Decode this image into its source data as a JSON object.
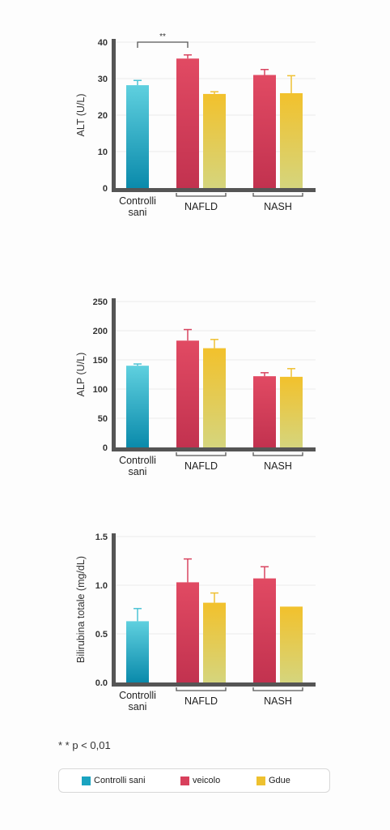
{
  "colors": {
    "controls": [
      "#5fd0df",
      "#0a8aab"
    ],
    "veicolo": [
      "#e14a63",
      "#c2324f"
    ],
    "gdue": [
      "#f2c12c",
      "#d5d57d"
    ],
    "axis": "#555555",
    "error_controls": "#4cc3d5",
    "error_veicolo": "#d94560",
    "error_gdue": "#efc033"
  },
  "group_labels": {
    "controls": [
      "Controlli",
      "sani"
    ],
    "nafld": "NAFLD",
    "nash": "NASH"
  },
  "chart_data": [
    {
      "type": "bar",
      "ylabel": "ALT (U/L)",
      "ylim": [
        0,
        40
      ],
      "ticks": [
        "0",
        "10",
        "20",
        "30",
        "40"
      ],
      "tick_values": [
        0,
        10,
        20,
        30,
        40
      ],
      "grid": true,
      "series": [
        {
          "name": "Controlli sani",
          "values": [
            28.2
          ],
          "errors": [
            1.3
          ]
        },
        {
          "name": "veicolo",
          "values": [
            35.5,
            31.0
          ],
          "errors": [
            1.0,
            1.5
          ]
        },
        {
          "name": "Gdue",
          "values": [
            25.8,
            26.0
          ],
          "errors": [
            0.6,
            4.8
          ]
        }
      ],
      "annotation": "**"
    },
    {
      "type": "bar",
      "ylabel": "ALP (U/L)",
      "ylim": [
        0,
        250
      ],
      "ticks": [
        "0",
        "50",
        "100",
        "150",
        "200",
        "250"
      ],
      "tick_values": [
        0,
        50,
        100,
        150,
        200,
        250
      ],
      "grid": true,
      "series": [
        {
          "name": "Controlli sani",
          "values": [
            140
          ],
          "errors": [
            3
          ]
        },
        {
          "name": "veicolo",
          "values": [
            183,
            122
          ],
          "errors": [
            19,
            6
          ]
        },
        {
          "name": "Gdue",
          "values": [
            170,
            121
          ],
          "errors": [
            15,
            14
          ]
        }
      ]
    },
    {
      "type": "bar",
      "ylabel": "Bilirubina totale (mg/dL)",
      "ylim": [
        0,
        1.5
      ],
      "ticks": [
        "0.0",
        "0.5",
        "1.0",
        "1.5"
      ],
      "tick_values": [
        0,
        0.5,
        1.0,
        1.5
      ],
      "grid": true,
      "series": [
        {
          "name": "Controlli sani",
          "values": [
            0.63
          ],
          "errors": [
            0.13
          ]
        },
        {
          "name": "veicolo",
          "values": [
            1.03,
            1.07
          ],
          "errors": [
            0.24,
            0.12
          ]
        },
        {
          "name": "Gdue",
          "values": [
            0.82,
            0.78
          ],
          "errors": [
            0.1,
            0
          ]
        }
      ]
    }
  ],
  "footnote": "* * p < 0,01",
  "legend": [
    {
      "label": "Controlli sani",
      "color": "#1aa3c0"
    },
    {
      "label": "veicolo",
      "color": "#d8405c"
    },
    {
      "label": "Gdue",
      "color": "#eec12f"
    }
  ]
}
